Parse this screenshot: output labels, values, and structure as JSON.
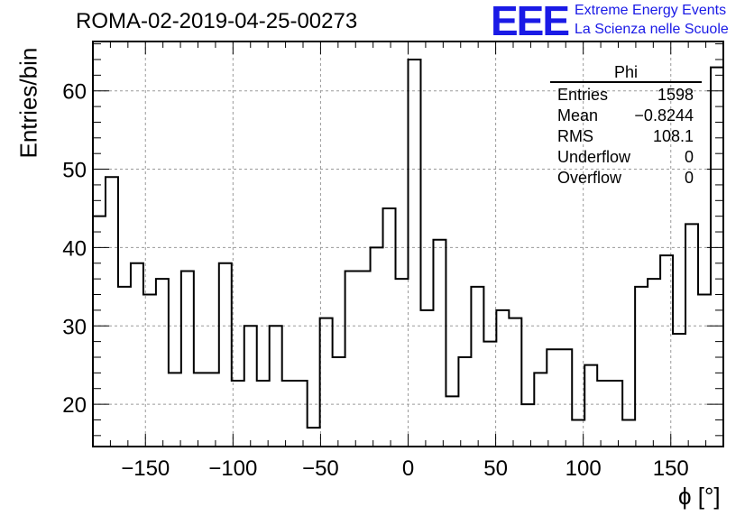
{
  "header": {
    "title": "ROMA-02-2019-04-25-00273",
    "logo_text": "EEE",
    "logo_line1": "Extreme Energy Events",
    "logo_line2": "La Scienza nelle Scuole"
  },
  "stats": {
    "name": "Phi",
    "rows": [
      {
        "label": "Entries",
        "value": "1598"
      },
      {
        "label": "Mean",
        "value": "−0.8244"
      },
      {
        "label": "RMS",
        "value": "108.1"
      },
      {
        "label": "Underflow",
        "value": "0"
      },
      {
        "label": "Overflow",
        "value": "0"
      }
    ]
  },
  "colors": {
    "line": "#000000",
    "grid": "#9a9a9a",
    "brand": "#1a1ae6"
  },
  "chart_data": {
    "type": "histogram",
    "xlabel": "ϕ [°]",
    "ylabel": "Entries/bin",
    "xlim": [
      -180,
      180
    ],
    "ylim": [
      14.6,
      66.3
    ],
    "bin_width": 7.2,
    "grid": true,
    "xticks": [
      -150,
      -100,
      -50,
      0,
      50,
      100,
      150
    ],
    "xtick_labels": [
      "−150",
      "−100",
      "−50",
      "0",
      "50",
      "100",
      "150"
    ],
    "yticks": [
      20,
      30,
      40,
      50,
      60
    ],
    "ytick_labels": [
      "20",
      "30",
      "40",
      "50",
      "60"
    ],
    "values": [
      44,
      49,
      35,
      38,
      34,
      36,
      24,
      37,
      24,
      24,
      38,
      23,
      30,
      23,
      30,
      23,
      23,
      17,
      31,
      26,
      37,
      37,
      40,
      45,
      36,
      64,
      32,
      41,
      21,
      26,
      35,
      28,
      32,
      31,
      20,
      24,
      27,
      27,
      18,
      25,
      23,
      23,
      18,
      35,
      36,
      39,
      29,
      43,
      34,
      63
    ]
  }
}
